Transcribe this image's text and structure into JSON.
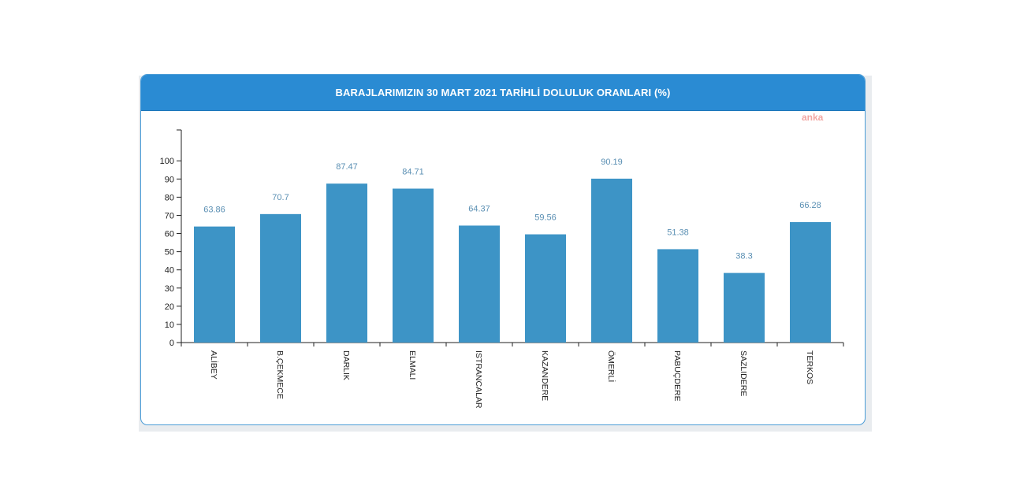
{
  "header": {
    "title": "BARAJLARIMIZIN 30 MART 2021 TARİHLİ DOLULUK ORANLARI (%)"
  },
  "watermark": {
    "text": "anka"
  },
  "colors": {
    "header": "#2a8bd3",
    "bar": "#3d94c6",
    "value_label": "#5a8fb3"
  },
  "chart_data": {
    "type": "bar",
    "title": "BARAJLARIMIZIN 30 MART 2021 TARİHLİ DOLULUK ORANLARI (%)",
    "xlabel": "",
    "ylabel": "",
    "categories": [
      "ALİBEY",
      "B.ÇEKMECE",
      "DARLIK",
      "ELMALI",
      "ISTRANCALAR",
      "KAZANDERE",
      "ÖMERLİ",
      "PABUÇDERE",
      "SAZLIDERE",
      "TERKOS"
    ],
    "values": [
      63.86,
      70.7,
      87.47,
      84.71,
      64.37,
      59.56,
      90.19,
      51.38,
      38.3,
      66.28
    ],
    "value_labels": [
      "63.86",
      "70.7",
      "87.47",
      "84.71",
      "64.37",
      "59.56",
      "90.19",
      "51.38",
      "38.3",
      "66.28"
    ],
    "yticks": [
      0,
      10,
      20,
      30,
      40,
      50,
      60,
      70,
      80,
      90,
      100
    ],
    "ylim": [
      0,
      117
    ],
    "grid": false,
    "legend": "none"
  }
}
